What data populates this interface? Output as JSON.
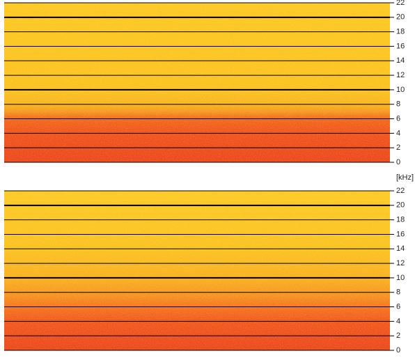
{
  "chart_data": [
    {
      "type": "spectrogram",
      "ylim": [
        0,
        22
      ],
      "yticks": [
        0,
        2,
        4,
        6,
        8,
        10,
        12,
        14,
        16,
        18,
        20,
        22
      ],
      "grid": true,
      "bold_grid_step": 10,
      "bands": {
        "y": [
          0,
          4,
          6,
          7,
          8,
          10,
          22
        ],
        "colors": [
          "#ec481c",
          "#f0531c",
          "#f2681d",
          "#f59a20",
          "#f8b420",
          "#fbc21f",
          "#fdc823"
        ]
      }
    },
    {
      "type": "spectrogram",
      "ylabel": "[kHz]",
      "ylim": [
        0,
        22
      ],
      "yticks": [
        0,
        2,
        4,
        6,
        8,
        10,
        12,
        14,
        16,
        18,
        20,
        22
      ],
      "grid": true,
      "bold_grid_step": 10,
      "bands": {
        "y": [
          0,
          4,
          6,
          8,
          10,
          14,
          22
        ],
        "colors": [
          "#ec481c",
          "#f2581d",
          "#f5751e",
          "#f89a20",
          "#f9b121",
          "#fbc220",
          "#fdca25"
        ]
      }
    }
  ]
}
